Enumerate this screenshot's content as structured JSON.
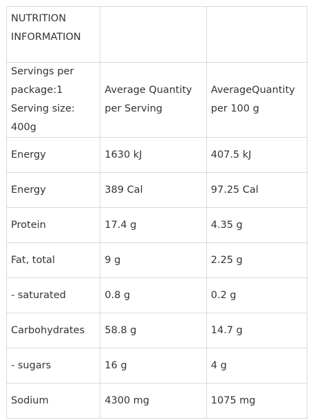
{
  "table": {
    "title_lines": [
      "NUTRITION",
      "INFORMATION"
    ],
    "header": {
      "servings_lines": [
        "Servings per",
        "package:1",
        "Serving size: 400g"
      ],
      "per_serving_lines": [
        "Average Quantity",
        "per Serving"
      ],
      "per_100g_lines": [
        "AverageQuantity",
        "per 100 g"
      ]
    },
    "rows": [
      {
        "nutrient": "Energy",
        "per_serving": "1630 kJ",
        "per_100g": "407.5 kJ"
      },
      {
        "nutrient": "Energy",
        "per_serving": "389 Cal",
        "per_100g": "97.25 Cal"
      },
      {
        "nutrient": "Protein",
        "per_serving": "17.4 g",
        "per_100g": "4.35 g"
      },
      {
        "nutrient": "Fat, total",
        "per_serving": "9 g",
        "per_100g": "2.25 g"
      },
      {
        "nutrient": "- saturated",
        "per_serving": "0.8 g",
        "per_100g": "0.2 g"
      },
      {
        "nutrient": "Carbohydrates",
        "per_serving": "58.8 g",
        "per_100g": "14.7 g"
      },
      {
        "nutrient": "- sugars",
        "per_serving": "16 g",
        "per_100g": "4 g"
      },
      {
        "nutrient": "Sodium",
        "per_serving": "4300 mg",
        "per_100g": "1075 mg"
      }
    ]
  }
}
